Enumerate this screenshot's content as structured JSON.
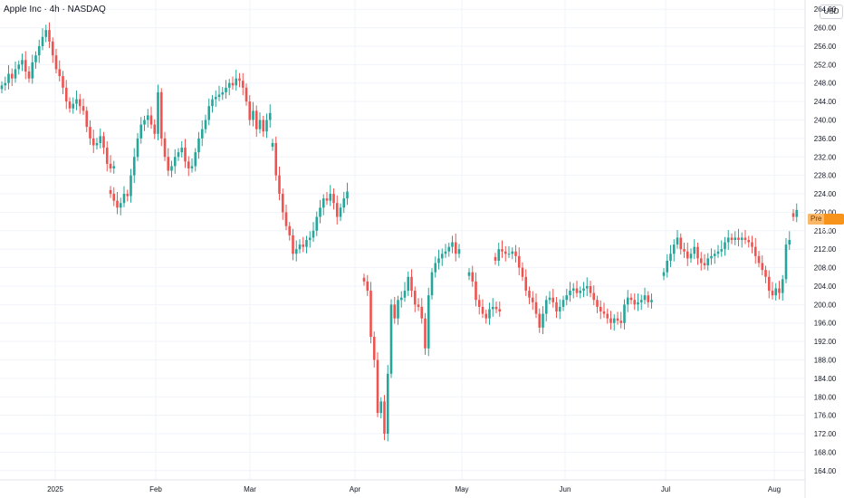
{
  "header": {
    "title": "Apple Inc · 4h · NASDAQ",
    "currency": "USD"
  },
  "price_tag": {
    "label": "Pre",
    "value": "221.00"
  },
  "colors": {
    "up": "#26a69a",
    "down": "#ef5350",
    "grid": "#f0f3fa",
    "axis_text": "#131722",
    "pre_market": "#f7931a"
  },
  "chart_data": {
    "type": "candlestick",
    "title": "Apple Inc · 4h · NASDAQ",
    "ylabel": "USD",
    "ylim": [
      162,
      266
    ],
    "y_ticks": [
      "164.00",
      "168.00",
      "172.00",
      "176.00",
      "180.00",
      "184.00",
      "188.00",
      "192.00",
      "196.00",
      "200.00",
      "204.00",
      "208.00",
      "212.00",
      "216.00",
      "220.00",
      "224.00",
      "228.00",
      "232.00",
      "236.00",
      "240.00",
      "244.00",
      "248.00",
      "252.00",
      "256.00",
      "260.00",
      "264.00"
    ],
    "x_labels": [
      "2025",
      "Feb",
      "Mar",
      "Apr",
      "May",
      "Jun",
      "Jul",
      "Aug"
    ],
    "grid": true,
    "series": [
      {
        "label_index": 0,
        "closes": [
          247.5,
          248.0,
          250.0,
          249.0,
          251.0,
          252.0,
          253.0,
          250.5,
          249.0,
          252.5,
          254.0,
          256.0,
          258.0,
          259.5,
          257.0,
          254.0,
          251.0,
          249.5,
          247.0,
          244.0,
          242.5,
          243.5,
          244.5,
          243.0,
          242.0,
          238.5,
          236.0,
          234.5,
          235.0,
          236.5,
          234.0,
          230.5,
          229.5,
          230.0
        ]
      },
      {
        "label_index": 0,
        "closes": [
          224.0,
          222.5,
          221.0,
          222.0,
          224.0,
          223.5,
          228.0,
          232.0,
          236.0,
          239.0,
          240.0,
          241.0,
          239.0,
          237.0,
          246.0,
          236.0,
          232.0,
          229.0,
          230.0,
          232.0,
          233.0,
          234.0,
          231.0,
          229.5,
          230.0,
          233.0,
          236.0,
          238.0,
          240.0,
          243.0,
          244.5,
          245.0,
          245.5,
          246.0,
          247.0,
          248.0,
          247.5,
          249.0,
          248.5,
          247.0,
          244.0,
          240.0,
          242.0,
          238.0,
          240.0,
          237.5,
          240.0,
          241.5
        ]
      },
      {
        "label_index": 0,
        "closes": [
          235.0,
          228.0,
          224.0,
          220.0,
          217.0,
          215.0,
          211.0,
          212.0,
          213.0,
          212.5,
          214.0,
          214.5,
          216.0,
          219.0,
          221.0,
          223.0,
          222.5,
          224.0,
          222.0,
          219.0,
          221.0,
          223.0,
          224.5
        ]
      },
      {
        "label_index": 0,
        "closes": [
          205.0,
          203.0,
          193.0,
          188.0,
          176.5,
          179.0,
          172.0,
          185.0,
          200.0,
          197.0,
          201.0,
          201.5,
          203.0,
          206.0,
          203.0,
          200.0,
          199.5,
          197.0,
          190.5,
          202.0,
          207.0,
          209.0,
          210.0,
          211.0,
          211.5,
          212.5,
          213.5,
          211.0,
          212.0
        ]
      },
      {
        "label_index": 4,
        "closes": [
          207.0,
          205.0,
          201.0,
          199.5,
          198.0,
          197.0,
          199.0,
          199.5,
          199.0,
          198.5
        ]
      },
      {
        "label_index": 4,
        "closes": [
          209.5,
          212.0,
          211.5,
          211.0,
          211.0,
          211.5,
          210.5,
          208.0,
          206.0,
          203.0,
          201.5,
          200.5,
          198.0,
          195.0,
          198.0,
          201.0,
          201.5,
          200.5,
          198.5,
          199.5,
          201.0,
          202.0,
          203.0,
          203.5,
          202.5,
          203.0,
          203.5,
          204.0,
          202.5,
          201.0,
          199.5,
          198.5,
          198.0,
          197.0,
          196.0,
          197.0,
          196.5,
          196.0,
          200.0,
          201.5,
          201.0,
          200.0,
          200.5,
          201.0,
          202.0,
          200.5,
          201.0
        ]
      },
      {
        "label_index": 6,
        "closes": [
          207.0,
          209.5,
          211.0,
          213.0,
          214.5,
          212.0,
          211.5,
          210.0,
          211.0,
          212.5,
          210.0,
          209.0,
          208.5,
          210.0,
          210.5,
          211.0,
          211.5,
          212.0,
          213.5,
          214.5,
          214.0,
          214.5,
          214.0,
          214.5,
          214.0,
          213.5,
          212.5,
          210.5,
          209.0,
          207.5,
          206.0,
          203.0,
          202.0,
          203.5,
          202.5,
          205.5,
          213.0,
          214.0
        ]
      },
      {
        "label_index": 7,
        "closes": [
          219.0,
          220.5
        ]
      }
    ]
  }
}
